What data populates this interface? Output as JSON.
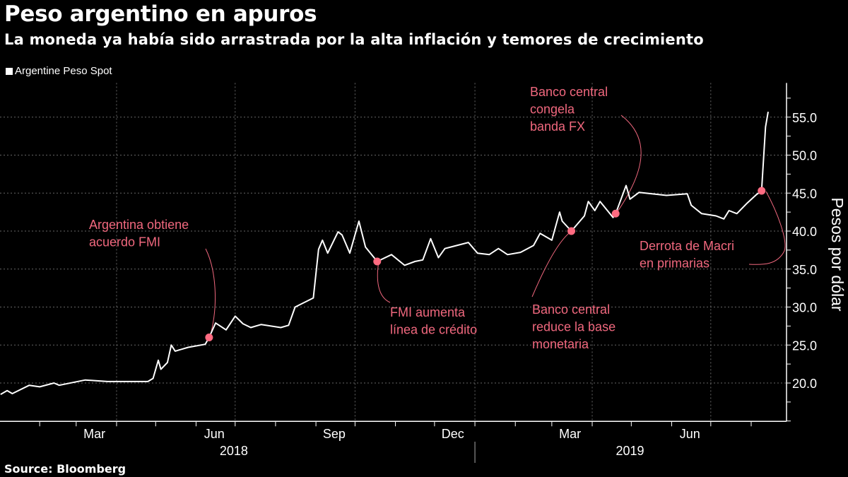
{
  "title": "Peso argentino en apuros",
  "subtitle": "La moneda ya había sido arrastrada por la alta inflación y temores de crecimiento",
  "source": "Source: Bloomberg",
  "colors": {
    "background": "#000000",
    "line": "#ffffff",
    "annotation": "#f0687e",
    "marker": "#ff6b81"
  },
  "chart_data": {
    "type": "line",
    "title": "Peso argentino en apuros",
    "ylabel": "Pesos por dólar",
    "xlabel": "",
    "ylim": [
      15,
      59.5
    ],
    "y_axis_position": "right",
    "grid": true,
    "legend_position": "top-left",
    "y_ticks": [
      "20.0",
      "25.0",
      "30.0",
      "35.0",
      "40.0",
      "45.0",
      "50.0",
      "55.0"
    ],
    "x_ticks": [
      {
        "label": "Mar",
        "date": "2018-03-15"
      },
      {
        "label": "Jun",
        "date": "2018-06-15"
      },
      {
        "label": "Sep",
        "date": "2018-09-15"
      },
      {
        "label": "Dec",
        "date": "2018-12-15"
      },
      {
        "label": "Mar",
        "date": "2019-03-15"
      },
      {
        "label": "Jun",
        "date": "2019-06-15"
      }
    ],
    "year_labels": [
      {
        "label": "2018",
        "date": "2018-06-30"
      },
      {
        "label": "2019",
        "date": "2019-04-30"
      }
    ],
    "series": [
      {
        "name": "Argentine Peso Spot",
        "points": [
          [
            "2018-01-02",
            18.5
          ],
          [
            "2018-01-07",
            19.0
          ],
          [
            "2018-01-11",
            18.6
          ],
          [
            "2018-01-24",
            19.7
          ],
          [
            "2018-02-01",
            19.5
          ],
          [
            "2018-02-12",
            20.0
          ],
          [
            "2018-02-16",
            19.7
          ],
          [
            "2018-03-08",
            20.4
          ],
          [
            "2018-03-25",
            20.2
          ],
          [
            "2018-04-25",
            20.2
          ],
          [
            "2018-04-29",
            20.6
          ],
          [
            "2018-05-03",
            23.0
          ],
          [
            "2018-05-05",
            21.8
          ],
          [
            "2018-05-10",
            22.7
          ],
          [
            "2018-05-13",
            25.0
          ],
          [
            "2018-05-16",
            24.2
          ],
          [
            "2018-05-26",
            24.7
          ],
          [
            "2018-06-08",
            25.1
          ],
          [
            "2018-06-11",
            26.0
          ],
          [
            "2018-06-16",
            27.9
          ],
          [
            "2018-06-24",
            27.0
          ],
          [
            "2018-07-01",
            28.8
          ],
          [
            "2018-07-07",
            27.8
          ],
          [
            "2018-07-13",
            27.3
          ],
          [
            "2018-07-21",
            27.7
          ],
          [
            "2018-08-05",
            27.3
          ],
          [
            "2018-08-11",
            27.6
          ],
          [
            "2018-08-16",
            30.0
          ],
          [
            "2018-08-30",
            31.2
          ],
          [
            "2018-09-03",
            37.6
          ],
          [
            "2018-09-06",
            38.8
          ],
          [
            "2018-09-10",
            37.1
          ],
          [
            "2018-09-18",
            39.9
          ],
          [
            "2018-09-21",
            39.5
          ],
          [
            "2018-09-27",
            37.1
          ],
          [
            "2018-10-04",
            41.3
          ],
          [
            "2018-10-09",
            37.9
          ],
          [
            "2018-10-18",
            36.0
          ],
          [
            "2018-10-29",
            36.9
          ],
          [
            "2018-11-08",
            35.5
          ],
          [
            "2018-11-16",
            36.0
          ],
          [
            "2018-11-22",
            36.2
          ],
          [
            "2018-11-28",
            39.0
          ],
          [
            "2018-12-04",
            36.5
          ],
          [
            "2018-12-09",
            37.7
          ],
          [
            "2018-12-27",
            38.5
          ],
          [
            "2019-01-03",
            37.1
          ],
          [
            "2019-01-12",
            36.9
          ],
          [
            "2019-01-19",
            37.7
          ],
          [
            "2019-01-26",
            36.9
          ],
          [
            "2019-02-05",
            37.2
          ],
          [
            "2019-02-15",
            38.1
          ],
          [
            "2019-02-20",
            39.7
          ],
          [
            "2019-03-01",
            38.8
          ],
          [
            "2019-03-07",
            42.5
          ],
          [
            "2019-03-09",
            41.3
          ],
          [
            "2019-03-16",
            40.0
          ],
          [
            "2019-03-26",
            42.0
          ],
          [
            "2019-03-29",
            43.9
          ],
          [
            "2019-04-03",
            42.7
          ],
          [
            "2019-04-07",
            43.9
          ],
          [
            "2019-04-17",
            41.8
          ],
          [
            "2019-04-19",
            42.3
          ],
          [
            "2019-04-27",
            46.0
          ],
          [
            "2019-04-30",
            44.2
          ],
          [
            "2019-05-07",
            45.1
          ],
          [
            "2019-05-28",
            44.7
          ],
          [
            "2019-06-13",
            44.9
          ],
          [
            "2019-06-16",
            43.4
          ],
          [
            "2019-06-24",
            42.3
          ],
          [
            "2019-07-05",
            42.0
          ],
          [
            "2019-07-11",
            41.6
          ],
          [
            "2019-07-15",
            42.7
          ],
          [
            "2019-07-21",
            42.3
          ],
          [
            "2019-07-29",
            43.7
          ],
          [
            "2019-08-05",
            44.8
          ],
          [
            "2019-08-09",
            45.3
          ],
          [
            "2019-08-12",
            53.7
          ],
          [
            "2019-08-14",
            55.7
          ]
        ]
      }
    ],
    "annotations": [
      {
        "date": "2018-06-11",
        "value": 26.0,
        "lines": [
          "Argentina obtiene",
          "acuerdo FMI"
        ]
      },
      {
        "date": "2018-10-18",
        "value": 36.0,
        "lines": [
          "FMI aumenta",
          "línea de crédito"
        ]
      },
      {
        "date": "2019-03-16",
        "value": 40.0,
        "lines": [
          "Banco central",
          "reduce la base",
          "monetaria"
        ]
      },
      {
        "date": "2019-04-19",
        "value": 42.3,
        "lines": [
          "Banco central",
          "congela",
          "banda FX"
        ]
      },
      {
        "date": "2019-08-09",
        "value": 45.3,
        "lines": [
          "Derrota de Macri",
          "en primarias"
        ]
      }
    ]
  }
}
